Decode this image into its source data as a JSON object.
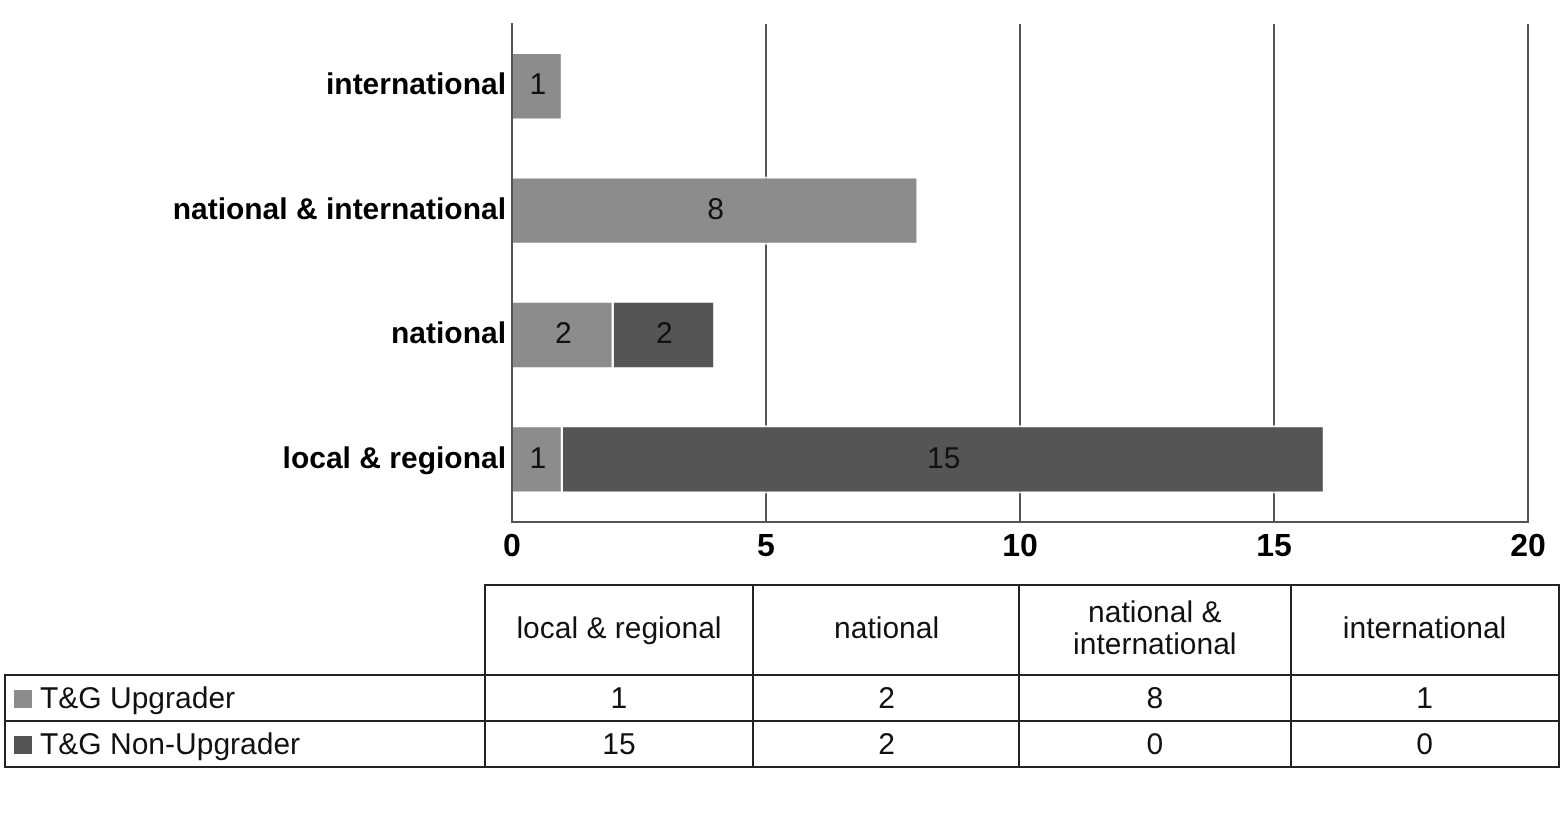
{
  "chart_data": {
    "type": "bar",
    "orientation": "horizontal",
    "stacked": true,
    "categories": [
      "international",
      "national & international",
      "national",
      "local & regional"
    ],
    "series": [
      {
        "name": "T&G Upgrader",
        "color": "#8c8c8c",
        "values": [
          1,
          8,
          2,
          1
        ],
        "value_labels": [
          "1",
          "8",
          "2",
          "1"
        ]
      },
      {
        "name": "T&G Non-Upgrader",
        "color": "#555555",
        "values": [
          0,
          0,
          2,
          15
        ],
        "value_labels": [
          null,
          null,
          "2",
          "15"
        ]
      }
    ],
    "xlim": [
      0,
      20
    ],
    "xticks": [
      0,
      5,
      10,
      15,
      20
    ],
    "grid": "x",
    "legend": "bottom",
    "annotations": [
      "1",
      "2",
      "8",
      "1",
      "15",
      "2",
      "0",
      "0"
    ]
  }
}
